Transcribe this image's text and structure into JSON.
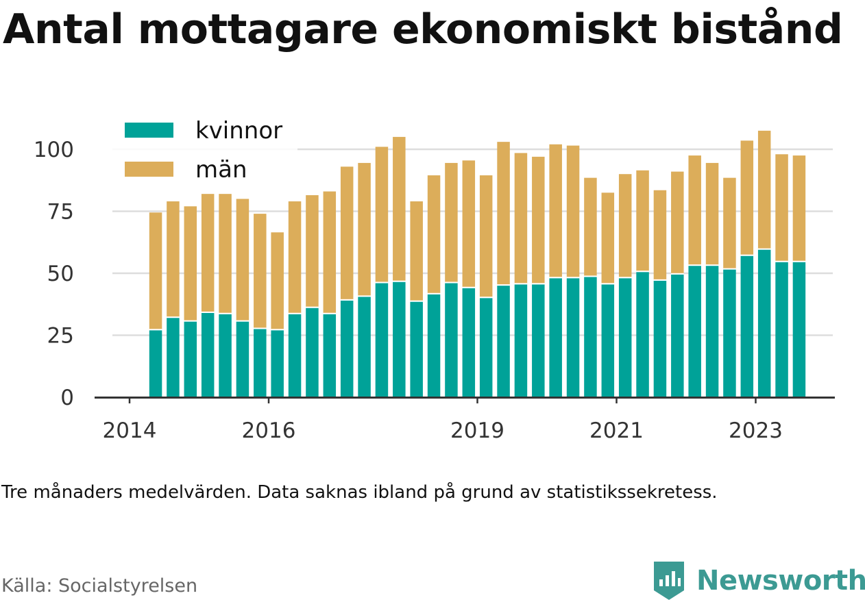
{
  "title": "Antal mottagare ekonomiskt bistånd",
  "note": "Tre månaders medelvärden. Data saknas ibland på grund av statistikssekretess.",
  "source": "Källa: Socialstyrelsen",
  "brand": "Newsworthy",
  "colors": {
    "kvinnor": "#00a298",
    "man": "#dcad5a",
    "grid": "#dddddd",
    "axis": "#333333",
    "brand": "#3c9a93"
  },
  "chart_data": {
    "type": "bar",
    "stacked": true,
    "title": "Antal mottagare ekonomiskt bistånd",
    "xlabel": "",
    "ylabel": "",
    "ylim": [
      0,
      110
    ],
    "yticks": [
      0,
      25,
      50,
      75,
      100
    ],
    "xticks": [
      {
        "label": "2014",
        "x": 2014.0
      },
      {
        "label": "2016",
        "x": 2016.0
      },
      {
        "label": "2019",
        "x": 2019.0
      },
      {
        "label": "2021",
        "x": 2021.0
      },
      {
        "label": "2023",
        "x": 2023.0
      }
    ],
    "grid": true,
    "legend": "top-left",
    "x": [
      2014.375,
      2014.625,
      2014.875,
      2015.125,
      2015.375,
      2015.625,
      2015.875,
      2016.125,
      2016.375,
      2016.625,
      2016.875,
      2017.125,
      2017.375,
      2017.625,
      2017.875,
      2018.125,
      2018.375,
      2018.625,
      2018.875,
      2019.125,
      2019.375,
      2019.625,
      2019.875,
      2020.125,
      2020.375,
      2020.625,
      2020.875,
      2021.125,
      2021.375,
      2021.625,
      2021.875,
      2022.125,
      2022.375,
      2022.625,
      2022.875,
      2023.125,
      2023.375,
      2023.625
    ],
    "series": [
      {
        "name": "kvinnor",
        "values": [
          27,
          32,
          30.5,
          34,
          33.5,
          30.5,
          27.5,
          27,
          33.5,
          36,
          33.5,
          39,
          40.5,
          46,
          46.5,
          38.5,
          41.5,
          46,
          44,
          40,
          45,
          45.5,
          45.5,
          48,
          48,
          48.5,
          45.5,
          48,
          50.5,
          47,
          49.5,
          53,
          53,
          51.5,
          57,
          59.5,
          54.5,
          54.5
        ]
      },
      {
        "name": "män",
        "values": [
          47.5,
          47,
          46.5,
          48,
          48.5,
          49.5,
          46.5,
          39.5,
          45.5,
          45.5,
          49.5,
          54,
          54,
          55,
          58.5,
          40.5,
          48,
          48.5,
          51.5,
          49.5,
          58,
          53,
          51.5,
          54,
          53.5,
          40,
          37,
          42,
          41,
          36.5,
          41.5,
          44.5,
          41.5,
          37,
          46.5,
          48,
          43.5,
          43
        ]
      }
    ]
  }
}
